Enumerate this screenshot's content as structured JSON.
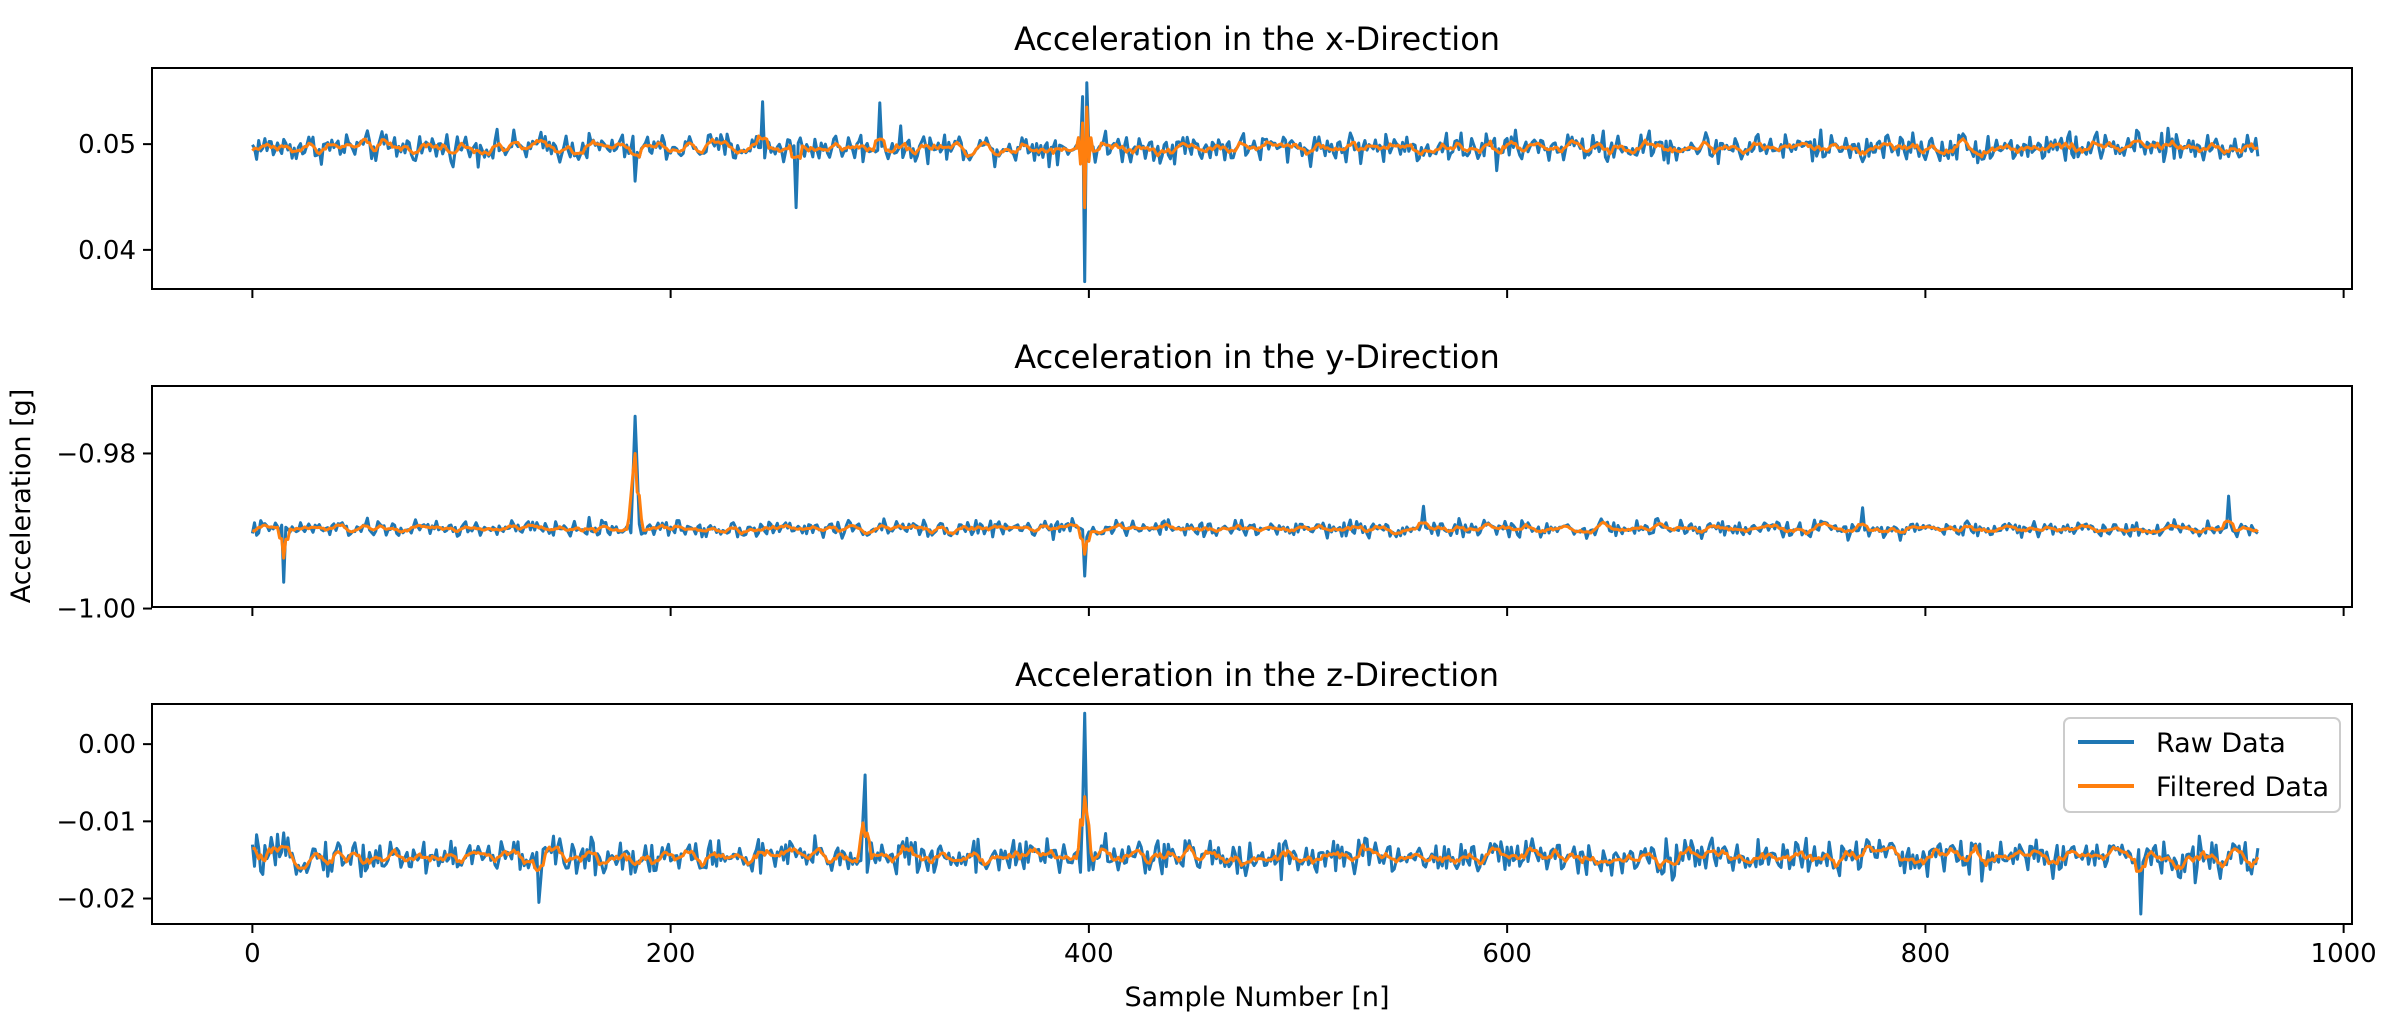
{
  "chart_data": {
    "type": "line",
    "ylabel": "Acceleration [g]",
    "xlabel": "Sample Number [n]",
    "xlim": [
      -48,
      1004
    ],
    "x_ticks": [
      0,
      200,
      400,
      600,
      800,
      1000
    ],
    "x_tick_labels": [
      "0",
      "200",
      "400",
      "600",
      "800",
      "1000"
    ],
    "legend": {
      "placement": "upper right of bottom panel",
      "entries": [
        "Raw Data",
        "Filtered Data"
      ]
    },
    "series_colors": {
      "Raw Data": "#1f77b4",
      "Filtered Data": "#ff7f0e"
    },
    "grid": false,
    "n_samples": 960,
    "panels": [
      {
        "title": "Acceleration in the x-Direction",
        "ylim": [
          0.0363,
          0.0572
        ],
        "y_ticks": [
          0.04,
          0.05
        ],
        "y_tick_labels": [
          "0.04",
          "0.05"
        ],
        "baseline": 0.0497,
        "raw_noise_amplitude": 0.0013,
        "filtered_noise_amplitude": 0.0006,
        "raw_spikes": [
          [
            397,
            0.0545
          ],
          [
            398,
            0.037
          ],
          [
            399,
            0.0558
          ],
          [
            183,
            0.0465
          ],
          [
            260,
            0.044
          ],
          [
            300,
            0.0539
          ],
          [
            244,
            0.054
          ],
          [
            595,
            0.0475
          ]
        ],
        "filtered_spikes": [
          [
            397,
            0.052
          ],
          [
            398,
            0.044
          ],
          [
            399,
            0.0535
          ]
        ]
      },
      {
        "title": "Acceleration in the y-Direction",
        "ylim": [
          -0.9998,
          -0.9713
        ],
        "y_ticks": [
          -1.0,
          -0.98
        ],
        "y_tick_labels": [
          "−1.00",
          "−0.98"
        ],
        "baseline": -0.9897,
        "raw_noise_amplitude": 0.001,
        "filtered_noise_amplitude": 0.0005,
        "raw_spikes": [
          [
            183,
            -0.9752
          ],
          [
            182,
            -0.983
          ],
          [
            184,
            -0.982
          ],
          [
            15,
            -0.9966
          ],
          [
            398,
            -0.9958
          ],
          [
            945,
            -0.9855
          ],
          [
            560,
            -0.9868
          ],
          [
            770,
            -0.987
          ]
        ],
        "filtered_spikes": [
          [
            182,
            -0.9825
          ],
          [
            183,
            -0.98
          ],
          [
            184,
            -0.985
          ],
          [
            15,
            -0.9935
          ],
          [
            398,
            -0.993
          ]
        ]
      },
      {
        "title": "Acceleration in the z-Direction",
        "ylim": [
          -0.0233,
          0.0052
        ],
        "y_ticks": [
          -0.02,
          -0.01,
          0.0
        ],
        "y_tick_labels": [
          "−0.02",
          "−0.01",
          "0.00"
        ],
        "baseline": -0.0146,
        "raw_noise_amplitude": 0.0022,
        "filtered_noise_amplitude": 0.0011,
        "raw_spikes": [
          [
            398,
            0.004
          ],
          [
            397,
            -0.0085
          ],
          [
            399,
            -0.01
          ],
          [
            293,
            -0.004
          ],
          [
            903,
            -0.022
          ],
          [
            137,
            -0.0205
          ],
          [
            292,
            -0.0095
          ]
        ],
        "filtered_spikes": [
          [
            398,
            -0.0068
          ],
          [
            397,
            -0.0105
          ],
          [
            292,
            -0.0102
          ]
        ]
      }
    ]
  }
}
